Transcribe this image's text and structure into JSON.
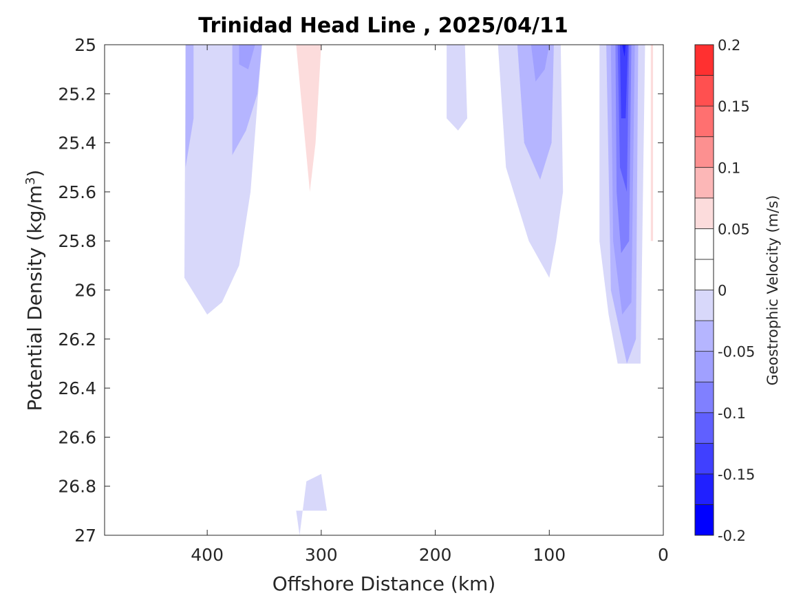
{
  "chart_data": {
    "type": "heatmap",
    "title": "Trinidad Head Line , 2025/04/11",
    "xlabel": "Offshore Distance (km)",
    "ylabel": "Potential Density (kg/m",
    "ylabel_sup": "3",
    "ylabel_end": ")",
    "x_reversed": true,
    "xlim": [
      0,
      490
    ],
    "ylim": [
      25,
      27
    ],
    "y_reversed": true,
    "grid": false,
    "x_ticks": [
      400,
      300,
      200,
      100,
      0
    ],
    "x_tick_labels": [
      "400",
      "300",
      "200",
      "100",
      "0"
    ],
    "y_ticks": [
      25,
      25.2,
      25.4,
      25.6,
      25.8,
      26,
      26.2,
      26.4,
      26.6,
      26.8,
      27
    ],
    "y_tick_labels": [
      "25",
      "25.2",
      "25.4",
      "25.6",
      "25.8",
      "26",
      "26.2",
      "26.4",
      "26.6",
      "26.8",
      "27"
    ],
    "colorbar": {
      "label": "Geostrophic Velocity (m/s)",
      "limits": [
        -0.2,
        0.2
      ],
      "tick_values": [
        0.2,
        0.15,
        0.1,
        0.05,
        0,
        -0.05,
        -0.1,
        -0.15,
        -0.2
      ],
      "tick_labels": [
        "0.2",
        "0.15",
        "0.1",
        "0.05",
        "0",
        "-0.05",
        "-0.1",
        "-0.15",
        "-0.2"
      ],
      "levels": [
        -0.2,
        -0.175,
        -0.15,
        -0.125,
        -0.1,
        -0.075,
        -0.05,
        -0.025,
        0,
        0.025,
        0.05,
        0.075,
        0.1,
        0.125,
        0.15,
        0.175,
        0.2
      ],
      "colors": [
        "#0000ff",
        "#2020ff",
        "#4040ff",
        "#6060ff",
        "#8080ff",
        "#a0a0ff",
        "#b5b5ff",
        "#d8d8fa",
        "#ffffff",
        "#ffffff",
        "#fcdcdc",
        "#fcb7b7",
        "#fc9090",
        "#ff7070",
        "#ff5050",
        "#ff3030",
        "#ff0000"
      ]
    },
    "contour_regions": [
      {
        "level": -0.025,
        "points": [
          [
            419,
            25
          ],
          [
            352,
            25
          ],
          [
            362,
            25.6
          ],
          [
            372,
            25.9
          ],
          [
            387,
            26.05
          ],
          [
            400,
            26.1
          ],
          [
            420,
            25.95
          ]
        ]
      },
      {
        "level": -0.05,
        "points": [
          [
            378,
            25
          ],
          [
            352,
            25
          ],
          [
            356,
            25.2
          ],
          [
            366,
            25.35
          ],
          [
            378,
            25.45
          ]
        ]
      },
      {
        "level": -0.05,
        "points": [
          [
            419,
            25
          ],
          [
            412,
            25
          ],
          [
            412,
            25.3
          ],
          [
            419,
            25.5
          ]
        ]
      },
      {
        "level": -0.075,
        "points": [
          [
            372,
            25
          ],
          [
            358,
            25
          ],
          [
            364,
            25.1
          ],
          [
            372,
            25.08
          ]
        ]
      },
      {
        "level": -0.025,
        "points": [
          [
            190,
            25
          ],
          [
            174,
            25
          ],
          [
            172,
            25.3
          ],
          [
            180,
            25.35
          ],
          [
            190,
            25.3
          ]
        ]
      },
      {
        "level": -0.025,
        "points": [
          [
            145,
            25
          ],
          [
            90,
            25
          ],
          [
            88,
            25.6
          ],
          [
            94,
            25.8
          ],
          [
            100,
            25.95
          ],
          [
            118,
            25.8
          ],
          [
            138,
            25.5
          ]
        ]
      },
      {
        "level": -0.05,
        "points": [
          [
            128,
            25
          ],
          [
            96,
            25
          ],
          [
            98,
            25.4
          ],
          [
            108,
            25.55
          ],
          [
            122,
            25.4
          ]
        ]
      },
      {
        "level": -0.075,
        "points": [
          [
            116,
            25
          ],
          [
            100,
            25
          ],
          [
            104,
            25.1
          ],
          [
            112,
            25.15
          ]
        ]
      },
      {
        "level": -0.025,
        "points": [
          [
            56,
            25
          ],
          [
            16,
            25
          ],
          [
            20,
            26.3
          ],
          [
            26,
            26.3
          ],
          [
            40,
            26.3
          ],
          [
            48,
            26.1
          ],
          [
            56,
            25.8
          ]
        ]
      },
      {
        "level": -0.05,
        "points": [
          [
            50,
            25
          ],
          [
            22,
            25
          ],
          [
            24,
            26.2
          ],
          [
            32,
            26.3
          ],
          [
            46,
            26.0
          ]
        ]
      },
      {
        "level": -0.075,
        "points": [
          [
            46,
            25
          ],
          [
            25,
            25
          ],
          [
            28,
            26.05
          ],
          [
            36,
            26.1
          ],
          [
            44,
            25.8
          ]
        ]
      },
      {
        "level": -0.1,
        "points": [
          [
            42,
            25
          ],
          [
            28,
            25
          ],
          [
            30,
            25.8
          ],
          [
            37,
            25.85
          ],
          [
            41,
            25.6
          ]
        ]
      },
      {
        "level": -0.125,
        "points": [
          [
            40,
            25
          ],
          [
            30,
            25
          ],
          [
            32,
            25.6
          ],
          [
            38,
            25.5
          ]
        ]
      },
      {
        "level": -0.15,
        "points": [
          [
            38,
            25
          ],
          [
            31,
            25
          ],
          [
            33,
            25.3
          ],
          [
            37,
            25.3
          ]
        ]
      },
      {
        "level": -0.175,
        "points": [
          [
            36,
            25
          ],
          [
            33,
            25
          ],
          [
            34,
            25.05
          ]
        ]
      },
      {
        "level": 0.025,
        "points": [
          [
            323,
            25
          ],
          [
            252,
            25
          ],
          [
            265,
            25.4
          ],
          [
            285,
            25.5
          ],
          [
            295,
            25.8
          ],
          [
            300,
            26.1
          ],
          [
            310,
            26.2
          ],
          [
            315,
            25.9
          ],
          [
            322,
            25.5
          ]
        ]
      },
      {
        "level": 0.05,
        "points": [
          [
            322,
            25
          ],
          [
            300,
            25
          ],
          [
            305,
            25.4
          ],
          [
            310,
            25.6
          ],
          [
            316,
            25.3
          ]
        ]
      },
      {
        "level": 0.025,
        "points": [
          [
            12,
            25
          ],
          [
            8,
            25
          ],
          [
            8,
            26.2
          ],
          [
            10,
            26.25
          ],
          [
            12,
            26.2
          ]
        ]
      },
      {
        "level": 0.05,
        "points": [
          [
            11,
            25
          ],
          [
            9,
            25
          ],
          [
            9,
            25.8
          ],
          [
            11,
            25.8
          ]
        ]
      },
      {
        "level": 0.025,
        "points": [
          [
            419,
            26.68
          ],
          [
            419,
            26.9
          ],
          [
            370,
            26.9
          ],
          [
            363,
            27
          ],
          [
            355,
            27
          ],
          [
            362,
            26.8
          ],
          [
            378,
            26.73
          ],
          [
            395,
            26.8
          ],
          [
            410,
            26.78
          ]
        ]
      },
      {
        "level": -0.025,
        "points": [
          [
            300,
            26.75
          ],
          [
            295,
            26.9
          ],
          [
            322,
            26.9
          ],
          [
            319,
            27
          ],
          [
            313,
            26.78
          ]
        ]
      },
      {
        "level": 0.025,
        "points": [
          [
            50,
            26.8
          ],
          [
            50,
            26.9
          ],
          [
            30,
            26.9
          ],
          [
            25,
            26.7
          ],
          [
            35,
            26.66
          ],
          [
            45,
            26.68
          ]
        ]
      },
      {
        "level": 0.025,
        "points": [
          [
            22,
            26.55
          ],
          [
            18,
            26.6
          ],
          [
            20,
            26.63
          ],
          [
            22,
            26.62
          ]
        ]
      }
    ]
  }
}
